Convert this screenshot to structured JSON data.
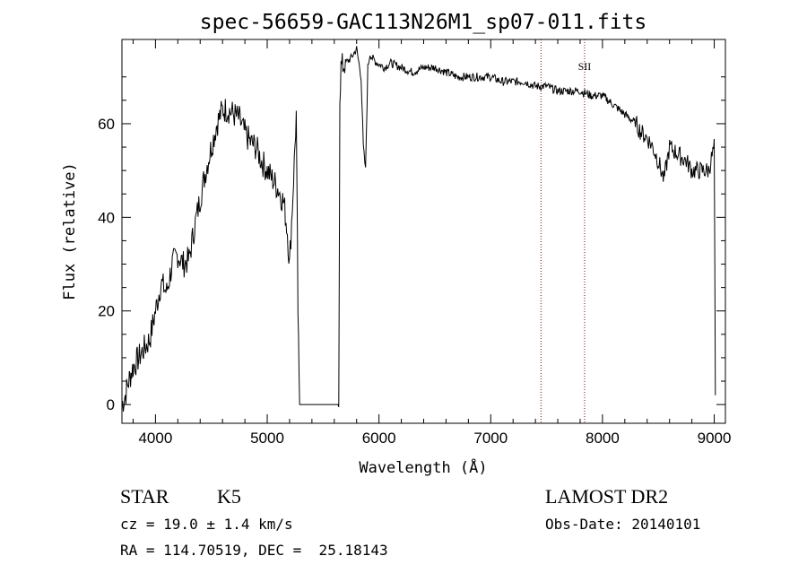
{
  "chart_data": {
    "type": "line",
    "title": "spec-56659-GAC113N26M1_sp07-011.fits",
    "xlabel": "Wavelength (Å)",
    "ylabel": "Flux (relative)",
    "xlim": [
      3700,
      9100
    ],
    "ylim": [
      -4,
      78
    ],
    "xticks": [
      4000,
      5000,
      6000,
      7000,
      8000,
      9000
    ],
    "yticks": [
      0,
      20,
      40,
      60
    ],
    "grid": false,
    "line_color": "#000000",
    "series": [
      {
        "x": [
          3700,
          3730,
          3760,
          3800,
          3850,
          3900,
          3950,
          4000,
          4050,
          4100,
          4150,
          4200,
          4250,
          4300,
          4350,
          4400,
          4450,
          4500,
          4550,
          4600,
          4650,
          4700,
          4750,
          4800,
          4850,
          4900,
          4950,
          5000,
          5050,
          5100,
          5150,
          5180,
          5200,
          5230,
          5260,
          5275,
          5285,
          5290,
          5300,
          5640,
          5650,
          5660,
          5700,
          5750,
          5800,
          5840,
          5860,
          5880,
          5900,
          5920,
          5940,
          5980,
          6050,
          6100,
          6200,
          6300,
          6400,
          6500,
          6600,
          6700,
          6800,
          6900,
          7000,
          7100,
          7200,
          7300,
          7400,
          7500,
          7600,
          7700,
          7800,
          7900,
          8000,
          8100,
          8200,
          8300,
          8350,
          8400,
          8450,
          8500,
          8550,
          8600,
          8650,
          8700,
          8750,
          8800,
          8850,
          8900,
          8950,
          9000,
          9010
        ],
        "y": [
          0,
          2,
          5,
          8,
          10,
          12,
          14,
          20,
          26,
          24,
          30,
          32,
          30,
          31,
          38,
          44,
          50,
          55,
          60,
          63,
          63,
          62,
          61,
          58,
          56,
          55,
          52,
          50,
          48,
          46,
          43,
          37,
          30,
          45,
          62,
          20,
          5,
          0,
          0,
          0,
          66,
          72,
          73,
          74,
          76,
          70,
          55,
          50,
          72,
          75,
          74,
          73,
          72,
          73,
          72,
          71,
          72,
          72,
          71,
          70,
          70,
          70,
          70,
          69,
          69,
          69,
          68,
          68,
          67,
          67,
          67,
          66,
          66,
          64,
          62,
          60,
          58,
          57,
          55,
          52,
          48,
          55,
          54,
          53,
          52,
          50,
          50,
          50,
          50,
          55,
          2
        ]
      }
    ],
    "vlines": [
      {
        "x": 7450,
        "color": "#8b0000"
      },
      {
        "x": 7840,
        "color": "#8b0000",
        "label": "SII"
      }
    ]
  },
  "info": {
    "object_type": "STAR",
    "subclass": "K5",
    "survey": "LAMOST DR2",
    "cz": "cz = 19.0 ± 1.4 km/s",
    "obs_date": "Obs-Date: 20140101",
    "coords": "RA = 114.70519, DEC =  25.18143"
  }
}
